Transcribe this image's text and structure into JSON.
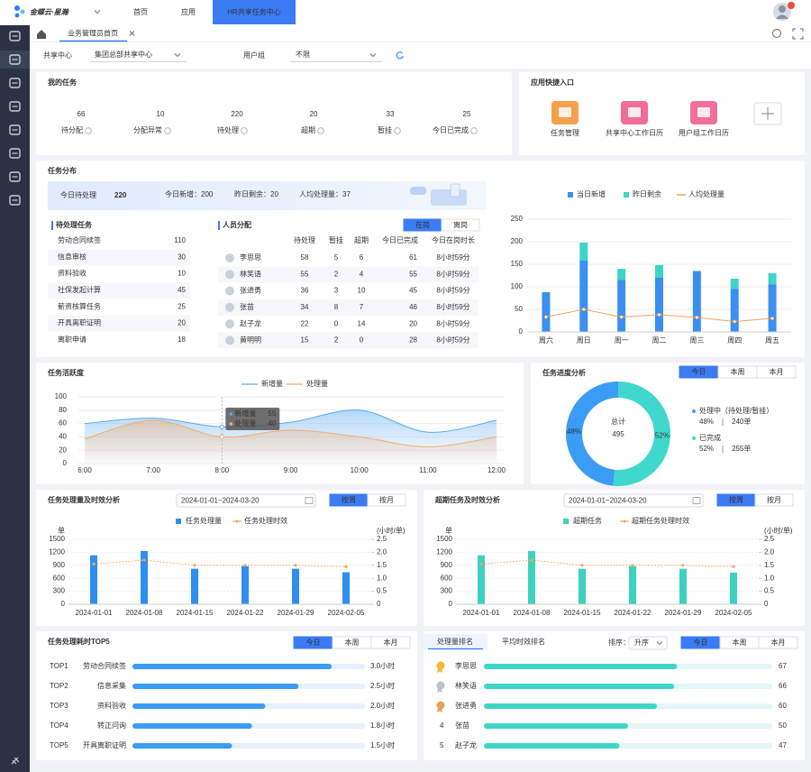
{
  "topbar": {
    "logo": "金蝶云·星瀚",
    "nav": [
      "首页",
      "应用",
      "HR共享任务中心"
    ]
  },
  "tabs": [
    "业务管理员首页"
  ],
  "filters": [
    {
      "label": "共享中心",
      "value": "集团总部共享中心"
    },
    {
      "label": "用户组",
      "value": "不限"
    }
  ],
  "my_tasks": {
    "title": "我的任务",
    "items": [
      {
        "value": 66,
        "label": "待分配",
        "color": "#222222"
      },
      {
        "value": 10,
        "label": "分配异常",
        "color": "#e8453c"
      },
      {
        "value": 220,
        "label": "待处理",
        "color": "#222222"
      },
      {
        "value": 20,
        "label": "超期",
        "color": "#e8453c"
      },
      {
        "value": 33,
        "label": "暂挂",
        "color": "#222222"
      },
      {
        "value": 25,
        "label": "今日已完成",
        "color": "#2ba471"
      }
    ]
  },
  "quick_entry": {
    "title": "应用快捷入口",
    "items": [
      "任务管理",
      "共享中心工作日历",
      "用户组工作日历"
    ]
  },
  "distribution": {
    "title": "任务分布",
    "banner": {
      "label": "今日待处理",
      "value": 220,
      "stats": [
        {
          "label": "今日新增：",
          "value": 200
        },
        {
          "label": "昨日剩余：",
          "value": 20
        },
        {
          "label": "人均处理量：",
          "value": 37
        }
      ]
    },
    "pending": {
      "title": "待处理任务",
      "rows": [
        {
          "name": "劳动合同续签",
          "value": 110
        },
        {
          "name": "信息审核",
          "value": 30
        },
        {
          "name": "资料验收",
          "value": 10
        },
        {
          "name": "社保发起计算",
          "value": 45
        },
        {
          "name": "薪资核算任务",
          "value": 25
        },
        {
          "name": "开具离职证明",
          "value": 20
        },
        {
          "name": "离职申请",
          "value": 18
        }
      ]
    },
    "staff": {
      "title": "人员分配",
      "toggle": [
        "在岗",
        "离岗"
      ],
      "headers": [
        "待处理",
        "暂挂",
        "超期",
        "今日已完成",
        "今日在岗时长"
      ],
      "rows": [
        {
          "name": "李思思",
          "values": [
            58,
            5,
            6,
            61
          ],
          "duration": "8小时59分"
        },
        {
          "name": "林笑语",
          "values": [
            55,
            2,
            4,
            55
          ],
          "duration": "8小时59分"
        },
        {
          "name": "张进勇",
          "values": [
            36,
            3,
            10,
            45
          ],
          "duration": "8小时59分"
        },
        {
          "name": "张苗",
          "values": [
            34,
            8,
            7,
            46
          ],
          "duration": "8小时59分"
        },
        {
          "name": "赵子龙",
          "values": [
            22,
            0,
            14,
            20
          ],
          "duration": "8小时59分"
        },
        {
          "name": "黄明明",
          "values": [
            15,
            2,
            0,
            28
          ],
          "duration": "8小时59分"
        }
      ]
    },
    "chart": {
      "type": "bar",
      "stacked": true,
      "categories": [
        "周六",
        "周日",
        "周一",
        "周二",
        "周三",
        "周四",
        "周五"
      ],
      "series": [
        {
          "name": "当日新增",
          "color": "#3b8ff0",
          "values": [
            88,
            158,
            115,
            120,
            135,
            95,
            105
          ]
        },
        {
          "name": "昨日剩余",
          "color": "#40d4c8",
          "values": [
            0,
            40,
            25,
            28,
            0,
            23,
            25
          ]
        },
        {
          "name": "人均处理量",
          "type": "line",
          "color": "#f5a35c",
          "values": [
            33,
            50,
            33,
            38,
            32,
            23,
            30
          ]
        }
      ],
      "ylim": [
        0,
        250
      ],
      "yticks": [
        0,
        50,
        100,
        150,
        200,
        250
      ],
      "grid": true
    }
  },
  "activity": {
    "title": "任务活跃度",
    "chart": {
      "type": "area",
      "x": [
        "6:00",
        "7:00",
        "8:00",
        "9:00",
        "10:00",
        "11:00",
        "12:00"
      ],
      "series": [
        {
          "name": "新增量",
          "color": "#5aaaf0",
          "values": [
            60,
            68,
            55,
            62,
            80,
            47,
            65
          ]
        },
        {
          "name": "处理量",
          "color": "#f5ab6e",
          "values": [
            37,
            65,
            40,
            50,
            40,
            25,
            40
          ]
        }
      ],
      "ylim": [
        0,
        100
      ],
      "yticks": [
        0,
        20,
        40,
        60,
        80,
        100
      ],
      "grid": true,
      "tooltip_index": 2
    }
  },
  "progress": {
    "title": "任务进度分析",
    "tabs": [
      "今日",
      "本周",
      "本月"
    ],
    "chart": {
      "type": "donut",
      "total_label": "总计",
      "total": 495,
      "series": [
        {
          "name": "处理中（待处理/暂挂）",
          "color": "#3b9cf5",
          "value": 240,
          "value_label": "240单",
          "percent": 48,
          "percent_label": "48%"
        },
        {
          "name": "已完成",
          "color": "#40d8cc",
          "value": 255,
          "value_label": "255单",
          "percent": 52,
          "percent_label": "52%"
        }
      ]
    }
  },
  "volume": {
    "title": "任务处理量及时效分析",
    "date_range": "2024-01-01~2024-03-20",
    "tabs": [
      "按周",
      "按月"
    ],
    "chart": {
      "type": "bar-line",
      "categories": [
        "2024-01-01",
        "2024-01-08",
        "2024-01-15",
        "2024-01-22",
        "2024-01-29",
        "2024-02-05"
      ],
      "y_unit": "单",
      "y2_unit": "(小时/单)",
      "series": [
        {
          "name": "任务处理量",
          "color": "#2f8ff0",
          "values": [
            1130,
            1230,
            820,
            880,
            820,
            740
          ]
        },
        {
          "name": "任务处理时效",
          "color": "#f5a35c",
          "axis": "y2",
          "values": [
            1.55,
            1.7,
            1.5,
            1.5,
            1.5,
            1.45
          ]
        }
      ],
      "ylim": [
        0,
        1500
      ],
      "yticks": [
        0,
        300,
        600,
        900,
        1200,
        1500
      ],
      "y2lim": [
        0,
        2.5
      ],
      "y2ticks": [
        0,
        0.5,
        {
          "value": 1,
          "label": "1.0"
        },
        1.5,
        {
          "value": 2,
          "label": "2.0"
        },
        2.5
      ],
      "grid": true
    }
  },
  "overdue": {
    "title": "超期任务及时效分析",
    "date_range": "2024-01-01~2024-03-20",
    "tabs": [
      "按周",
      "按月"
    ],
    "chart": {
      "type": "bar-line",
      "categories": [
        "2024-01-01",
        "2024-01-08",
        "2024-01-15",
        "2024-01-22",
        "2024-01-29",
        "2024-02-05"
      ],
      "y_unit": "单",
      "y2_unit": "(小时/单)",
      "series": [
        {
          "name": "超期任务",
          "color": "#3dd1c0",
          "values": [
            1130,
            1230,
            820,
            880,
            820,
            730
          ]
        },
        {
          "name": "超期任务处理时效",
          "color": "#f5a35c",
          "axis": "y2",
          "values": [
            1.55,
            1.7,
            1.5,
            1.5,
            1.5,
            1.45
          ]
        }
      ],
      "ylim": [
        0,
        1500
      ],
      "yticks": [
        0,
        300,
        600,
        900,
        1200,
        1500
      ],
      "y2lim": [
        0,
        2.5
      ],
      "y2ticks": [
        0,
        0.5,
        {
          "value": 1,
          "label": "1.0"
        },
        1.5,
        {
          "value": 2,
          "label": "2.0"
        },
        2.5
      ],
      "grid": true
    }
  },
  "top5": {
    "title": "任务处理耗时TOP5",
    "tabs": [
      "今日",
      "本周",
      "本月"
    ],
    "chart": {
      "type": "hbar",
      "ranks": [
        "TOP1",
        "TOP2",
        "TOP3",
        "TOP4",
        "TOP5"
      ],
      "categories": [
        "劳动合同续签",
        "信息采集",
        "资料验收",
        "转正问询",
        "开具离职证明"
      ],
      "values": [
        3.0,
        2.5,
        2.0,
        1.8,
        1.5
      ],
      "value_labels": [
        "3.0小时",
        "2.5小时",
        "2.0小时",
        "1.8小时",
        "1.5小时"
      ],
      "xlim": [
        0,
        3.5
      ],
      "color": "#3b9cf5"
    }
  },
  "ranking": {
    "tabs": [
      "处理量排名",
      "平均时效排名"
    ],
    "sort_label": "排序：",
    "sort_value": "升序",
    "period_tabs": [
      "今日",
      "本周",
      "本月"
    ],
    "chart": {
      "type": "hbar",
      "ranks": [
        null,
        null,
        null,
        4,
        5
      ],
      "categories": [
        "李思思",
        "林笑语",
        "张进勇",
        "张苗",
        "赵子龙"
      ],
      "values": [
        67,
        66,
        60,
        50,
        47
      ],
      "xlim": [
        0,
        100
      ],
      "color": "#3dd6c6"
    }
  }
}
